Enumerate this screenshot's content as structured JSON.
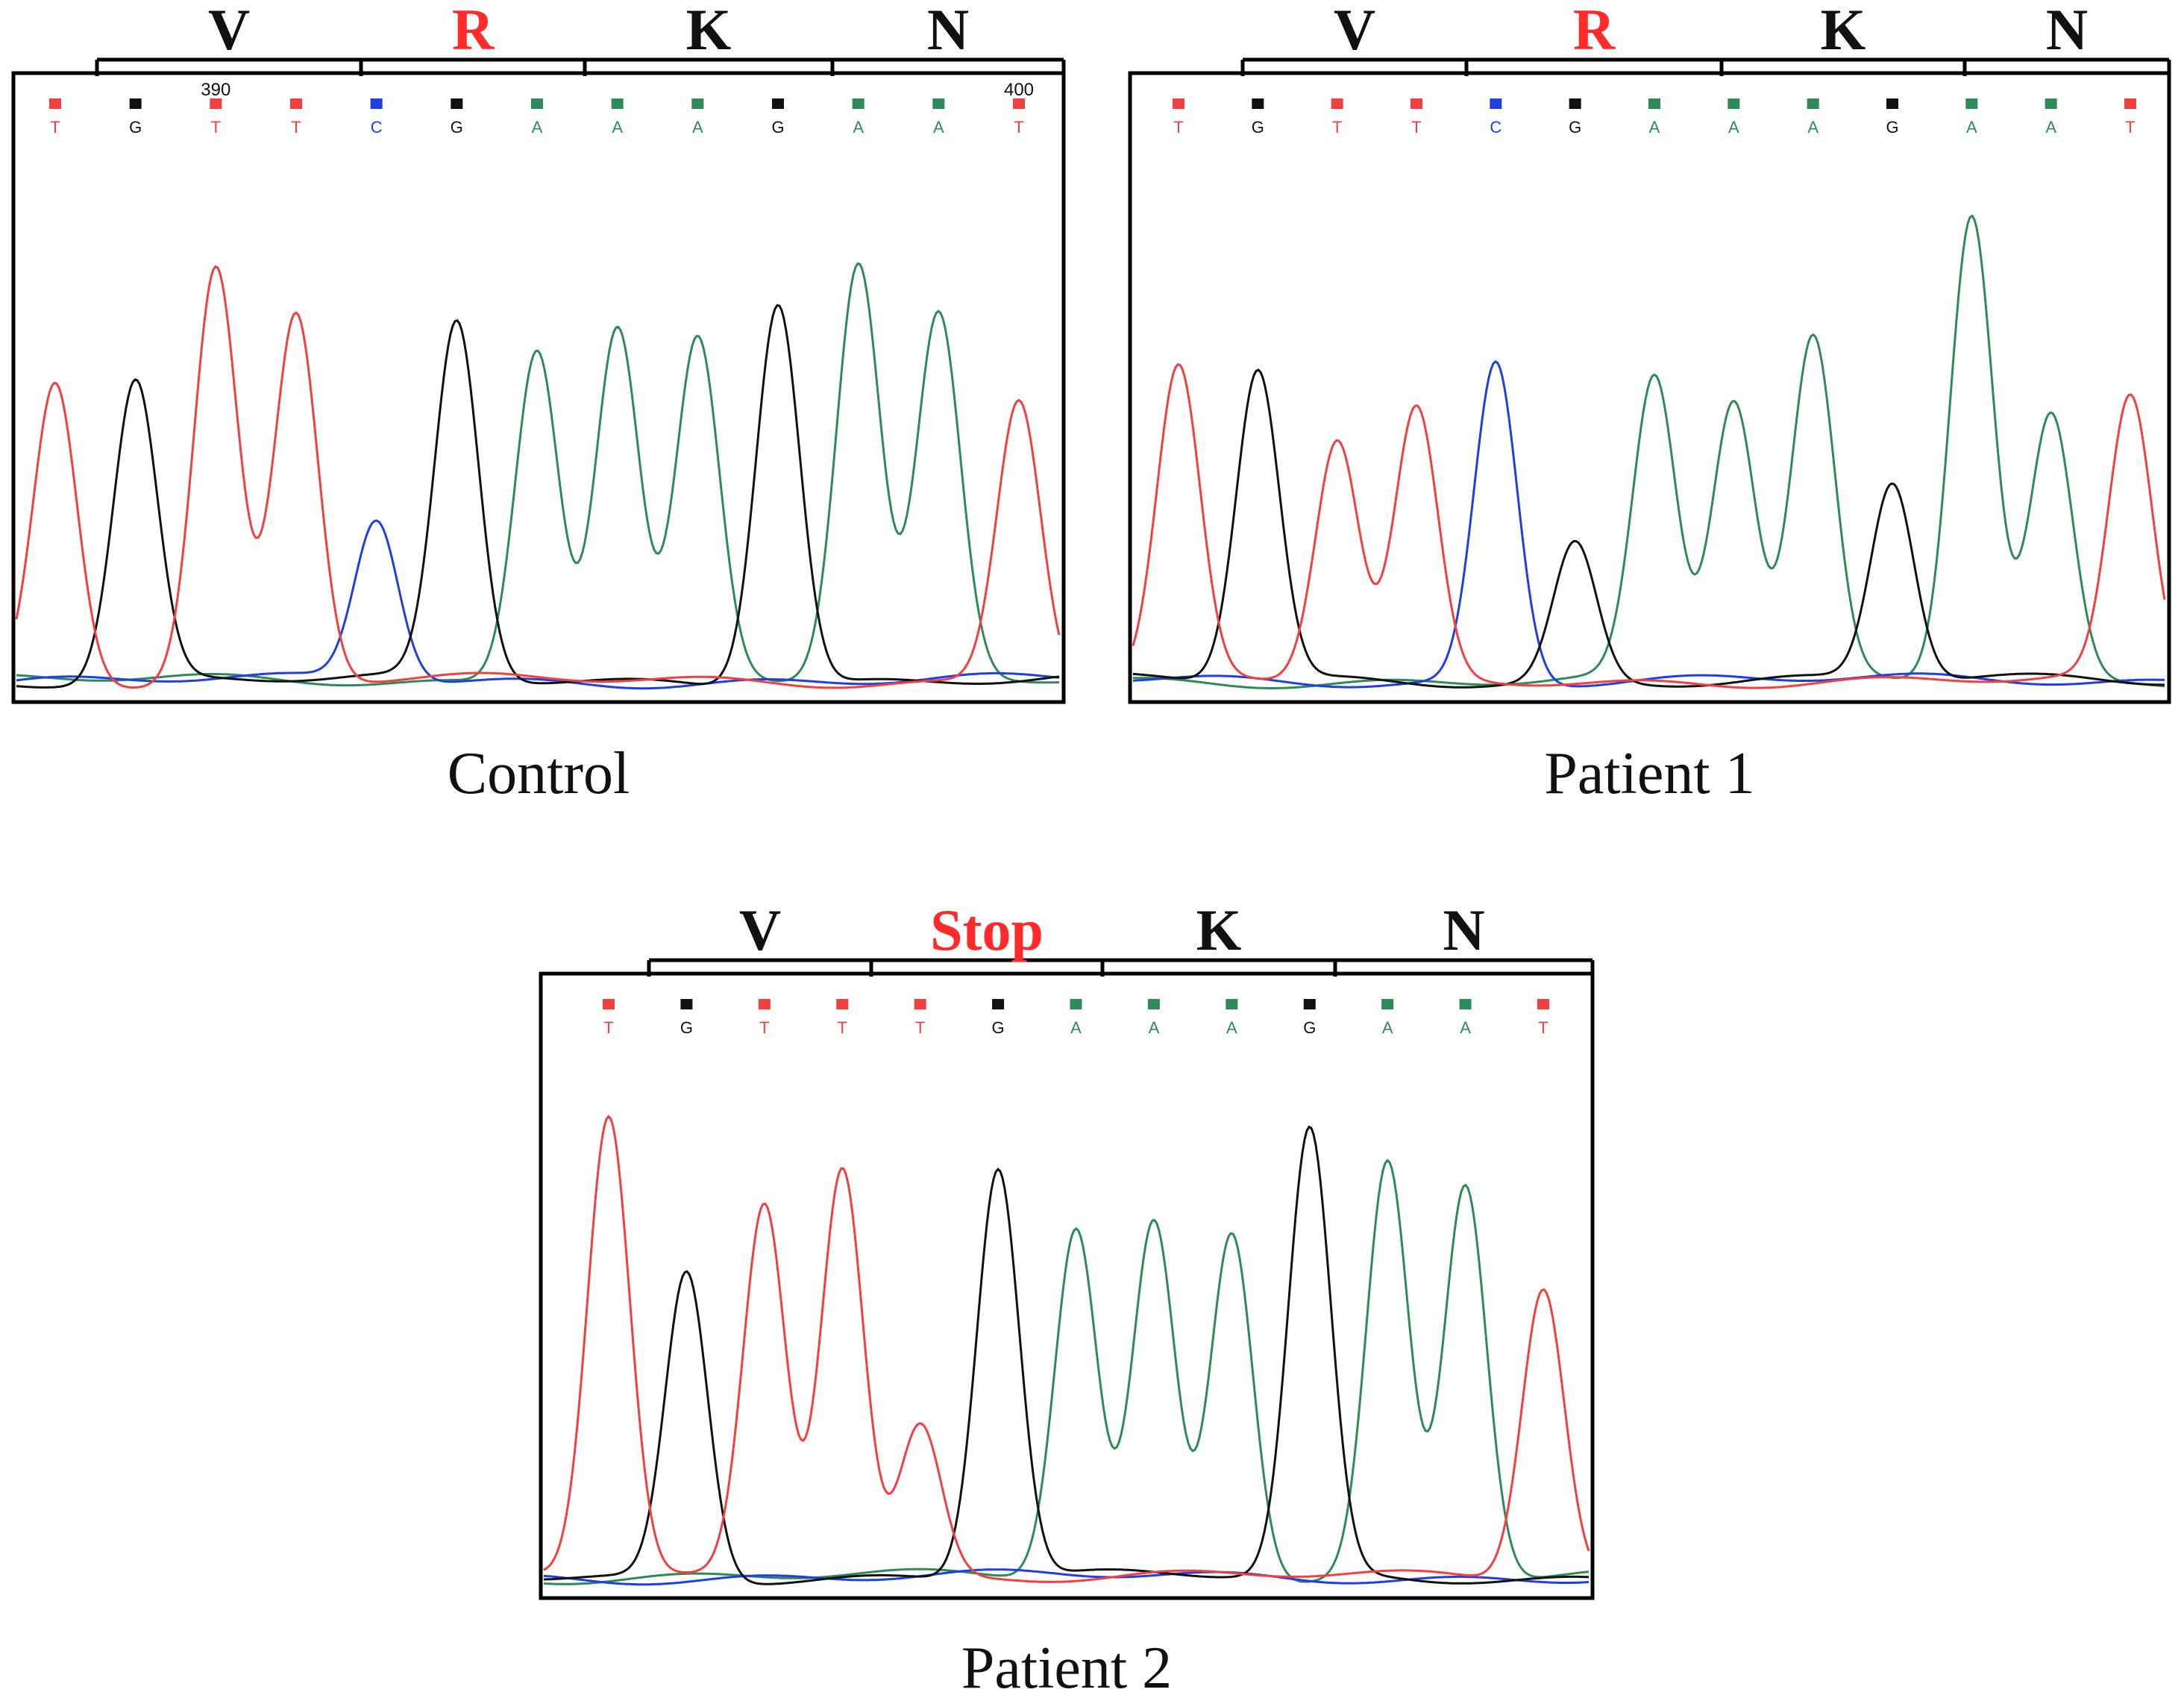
{
  "colors": {
    "A": "#2e8b57",
    "C": "#1f3fe0",
    "G": "#111111",
    "T": "#f04040",
    "frame": "#000000",
    "codon_normal": "#111111",
    "codon_highlight": "#ff2a2a"
  },
  "panels": [
    {
      "id": "control",
      "caption": "Control",
      "codons": [
        {
          "label": "V",
          "highlight": false
        },
        {
          "label": "R",
          "highlight": true
        },
        {
          "label": "K",
          "highlight": false
        },
        {
          "label": "N",
          "highlight": false
        }
      ],
      "position_numbers": [
        "390",
        "400"
      ],
      "bases": [
        "T",
        "G",
        "T",
        "T",
        "C",
        "G",
        "A",
        "A",
        "A",
        "G",
        "A",
        "A",
        "T"
      ],
      "peak_heights": [
        0.58,
        0.58,
        0.8,
        0.71,
        0.31,
        0.69,
        0.65,
        0.69,
        0.66,
        0.74,
        0.8,
        0.7,
        0.55
      ]
    },
    {
      "id": "patient1",
      "caption": "Patient 1",
      "codons": [
        {
          "label": "V",
          "highlight": false
        },
        {
          "label": "R",
          "highlight": true
        },
        {
          "label": "K",
          "highlight": false
        },
        {
          "label": "N",
          "highlight": false
        }
      ],
      "position_numbers": [],
      "bases": [
        "T",
        "G",
        "T",
        "T",
        "C",
        "G",
        "A",
        "A",
        "A",
        "G",
        "A",
        "A",
        "T"
      ],
      "peak_heights": [
        0.6,
        0.6,
        0.46,
        0.52,
        0.62,
        0.27,
        0.58,
        0.54,
        0.66,
        0.38,
        0.91,
        0.52,
        0.54
      ]
    },
    {
      "id": "patient2",
      "caption": "Patient 2",
      "codons": [
        {
          "label": "V",
          "highlight": false
        },
        {
          "label": "Stop",
          "highlight": true
        },
        {
          "label": "K",
          "highlight": false
        },
        {
          "label": "N",
          "highlight": false
        }
      ],
      "position_numbers": [],
      "bases": [
        "T",
        "G",
        "T",
        "T",
        "T",
        "G",
        "A",
        "A",
        "A",
        "G",
        "A",
        "A",
        "T"
      ],
      "peak_heights": [
        0.9,
        0.6,
        0.73,
        0.81,
        0.3,
        0.8,
        0.68,
        0.69,
        0.68,
        0.87,
        0.81,
        0.77,
        0.57
      ]
    }
  ]
}
